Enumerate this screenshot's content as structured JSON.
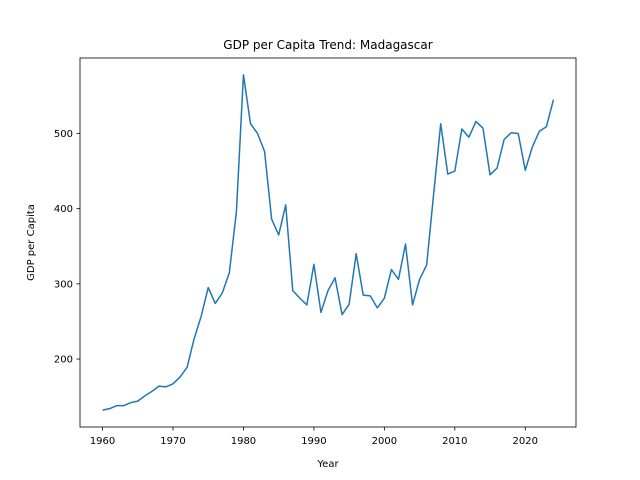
{
  "chart_data": {
    "type": "line",
    "title": "GDP per Capita Trend: Madagascar",
    "xlabel": "Year",
    "ylabel": "GDP per Capita",
    "xlim": [
      1956.8,
      2027.2
    ],
    "ylim": [
      109.6,
      600.4
    ],
    "xticks": [
      1960,
      1970,
      1980,
      1990,
      2000,
      2010,
      2020
    ],
    "yticks": [
      200,
      300,
      400,
      500
    ],
    "grid": false,
    "line_color": "#1f77b4",
    "series": [
      {
        "x": [
          1960,
          1961,
          1962,
          1963,
          1964,
          1965,
          1966,
          1967,
          1968,
          1969,
          1970,
          1971,
          1972,
          1973,
          1974,
          1975,
          1976,
          1977,
          1978,
          1979,
          1980,
          1981,
          1982,
          1983,
          1984,
          1985,
          1986,
          1987,
          1988,
          1989,
          1990,
          1991,
          1992,
          1993,
          1994,
          1995,
          1996,
          1997,
          1998,
          1999,
          2000,
          2001,
          2002,
          2003,
          2004,
          2005,
          2006,
          2007,
          2008,
          2009,
          2010,
          2011,
          2012,
          2013,
          2014,
          2015,
          2016,
          2017,
          2018,
          2019,
          2020,
          2021,
          2022,
          2023,
          2024
        ],
        "values": [
          132,
          134,
          138,
          138,
          142,
          144,
          151,
          157,
          164,
          163,
          167,
          176,
          189,
          227,
          257,
          295,
          274,
          288,
          315,
          396,
          578,
          513,
          500,
          476,
          386,
          365,
          405,
          291,
          281,
          272,
          326,
          262,
          291,
          308,
          259,
          273,
          340,
          285,
          284,
          268,
          281,
          319,
          306,
          353,
          272,
          306,
          325,
          420,
          513,
          446,
          450,
          506,
          495,
          516,
          507,
          445,
          454,
          492,
          501,
          500,
          451,
          482,
          503,
          509,
          545
        ]
      }
    ]
  }
}
